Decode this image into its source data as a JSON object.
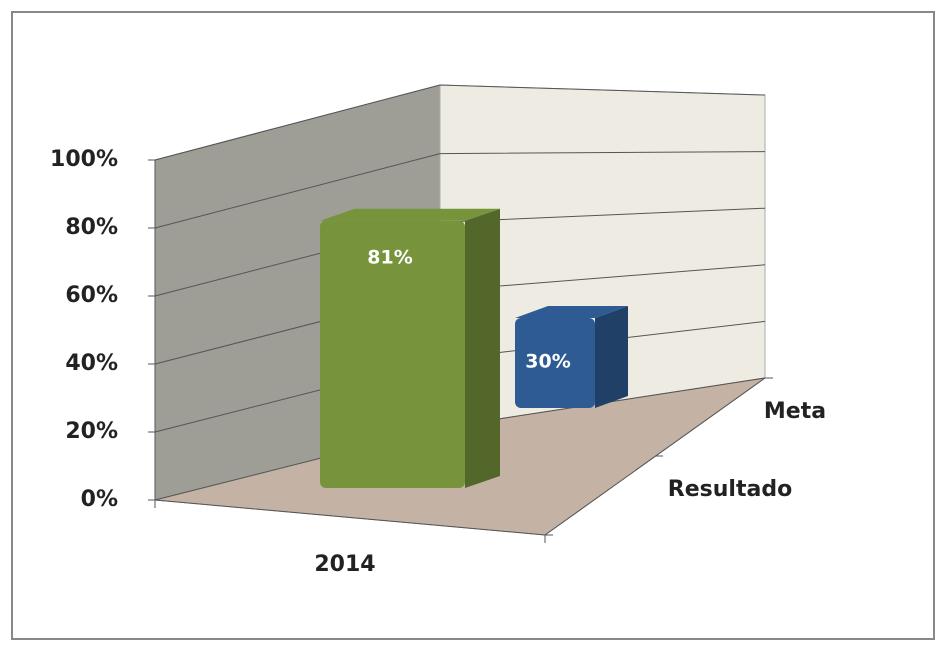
{
  "chart_data": {
    "type": "bar3d",
    "categories": [
      "2014"
    ],
    "series": [
      {
        "name": "Resultado",
        "color": "#77933c",
        "values": [
          81
        ],
        "value_labels": [
          "81%"
        ]
      },
      {
        "name": "Meta",
        "color": "#2f5b94",
        "values": [
          30
        ],
        "value_labels": [
          "30%"
        ]
      }
    ],
    "ylim": [
      0,
      100
    ],
    "yticks": [
      {
        "value": 0,
        "label": "0%"
      },
      {
        "value": 20,
        "label": "20%"
      },
      {
        "value": 40,
        "label": "40%"
      },
      {
        "value": 60,
        "label": "60%"
      },
      {
        "value": 80,
        "label": "80%"
      },
      {
        "value": 100,
        "label": "100%"
      }
    ],
    "grid": true
  }
}
